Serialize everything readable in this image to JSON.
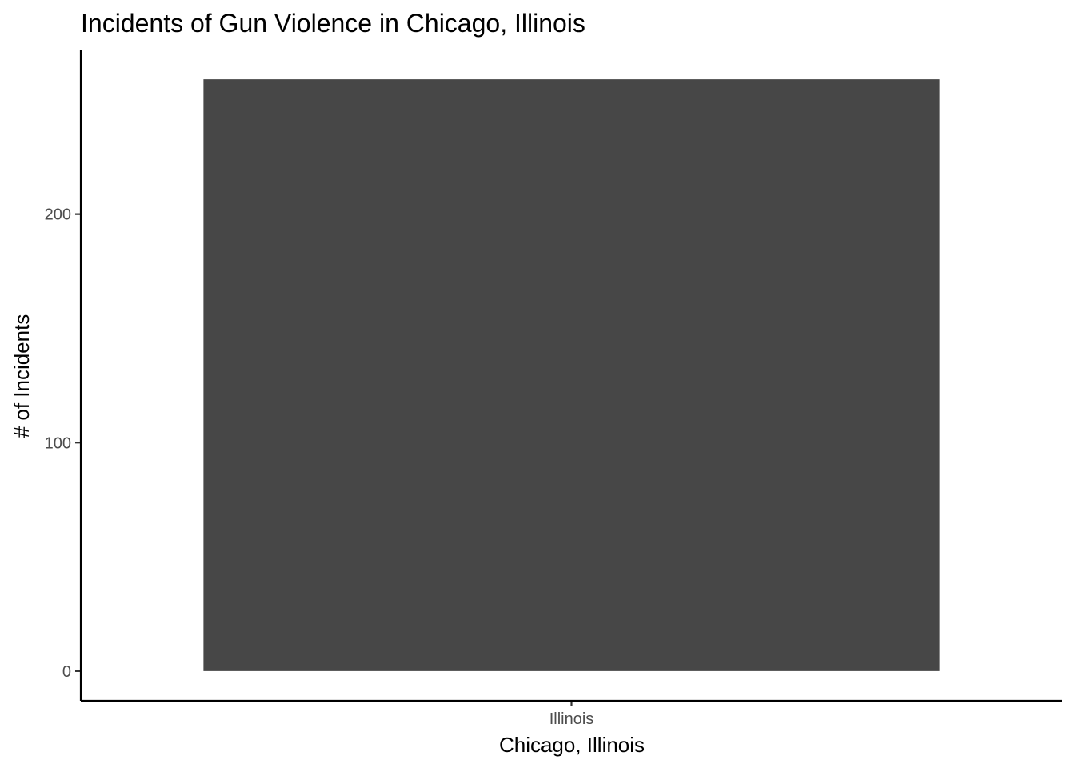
{
  "chart_data": {
    "type": "bar",
    "title": "Incidents of Gun Violence in Chicago, Illinois",
    "xlabel": "Chicago, Illinois",
    "ylabel": "# of Incidents",
    "categories": [
      "Illinois"
    ],
    "values": [
      259
    ],
    "ylim": [
      -13,
      272
    ],
    "yticks": [
      0,
      100,
      200
    ],
    "grid": false,
    "legend": "none",
    "bar_color": "#474747"
  }
}
